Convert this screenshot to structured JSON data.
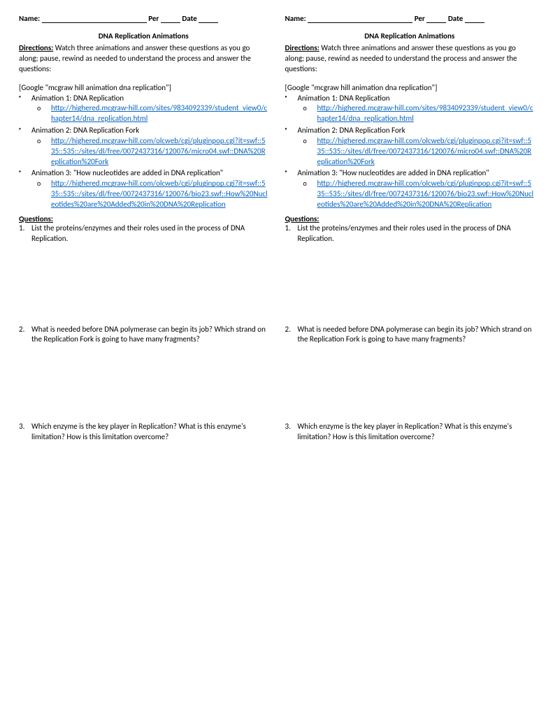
{
  "header": {
    "name_label": "Name:",
    "per_label": "Per",
    "date_label": "Date"
  },
  "title": "DNA Replication Animations",
  "directions": {
    "label": "Directions:",
    "text": " Watch three animations and answer these questions as you go along; pause, rewind as needed to understand the process and answer the questions:"
  },
  "google_hint": "[Google \"mcgraw hill animation dna replication\"]",
  "animations": [
    {
      "label": "Animation 1: DNA Replication",
      "url": "http://highered.mcgraw-hill.com/sites/9834092339/student_view0/chapter14/dna_replication.html"
    },
    {
      "label": "Animation 2: DNA Replication Fork",
      "url": "http://highered.mcgraw-hill.com/olcweb/cgi/pluginpop.cgi?it=swf::535::535::/sites/dl/free/0072437316/120076/micro04.swf::DNA%20Replication%20Fork"
    },
    {
      "label": "Animation 3: \"How nucleotides are added in DNA replication\"",
      "url": "http://highered.mcgraw-hill.com/olcweb/cgi/pluginpop.cgi?it=swf::535::535::/sites/dl/free/0072437316/120076/bio23.swf::How%20Nucleotides%20are%20Added%20in%20DNA%20Replication"
    }
  ],
  "questions": {
    "label": "Questions:",
    "items": [
      "List the proteins/enzymes and their roles used in the process of DNA Replication.",
      "What is needed before DNA polymerase can begin its job?  Which strand on the Replication Fork is going to have many fragments?",
      "Which enzyme is the key player in Replication? What is this enzyme's limitation? How is this limitation overcome?"
    ]
  }
}
